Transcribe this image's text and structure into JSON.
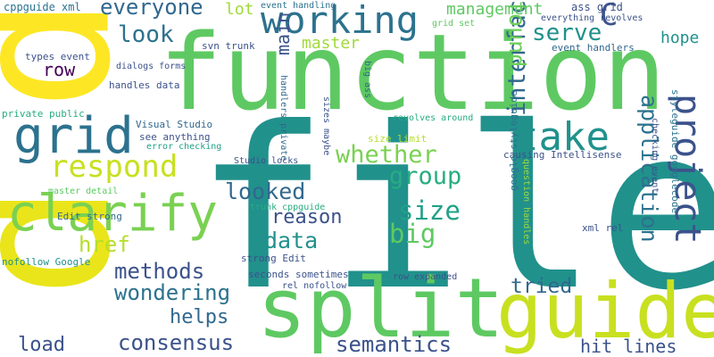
{
  "palette": {
    "dark_purple": "#440154",
    "indigo": "#3b528b",
    "blue": "#2c728e",
    "teal": "#21918c",
    "green": "#27ad81",
    "light_green": "#5ec962",
    "lime": "#9fda3a",
    "yellow": "#fde725"
  },
  "words": [
    {
      "text": "file",
      "color": "#21918c"
    },
    {
      "text": "function",
      "color": "#5ec962"
    },
    {
      "text": "split",
      "color": "#5ec962"
    },
    {
      "text": "guide",
      "color": "#c8e020"
    },
    {
      "text": "p",
      "color": "#fde725"
    },
    {
      "text": "p",
      "color": "#e9e51a"
    },
    {
      "text": "clarify",
      "color": "#7ad151"
    },
    {
      "text": "grid",
      "color": "#2c728e"
    },
    {
      "text": "working",
      "color": "#2c728e"
    },
    {
      "text": "take",
      "color": "#21918c"
    },
    {
      "text": "project",
      "color": "#3b528b"
    },
    {
      "text": "respond",
      "color": "#c8e020"
    },
    {
      "text": "whether",
      "color": "#7ad151"
    },
    {
      "text": "group",
      "color": "#27ad81"
    },
    {
      "text": "size",
      "color": "#1fa187"
    },
    {
      "text": "big",
      "color": "#5ec962"
    },
    {
      "text": "looked",
      "color": "#31688e"
    },
    {
      "text": "data",
      "color": "#21918c"
    },
    {
      "text": "reason",
      "color": "#3b528b"
    },
    {
      "text": "interface",
      "color": "#31688e"
    },
    {
      "text": "application",
      "color": "#2c728e"
    },
    {
      "text": "found",
      "color": "#6ece58"
    },
    {
      "text": "serve",
      "color": "#21918c"
    },
    {
      "text": "C",
      "color": "#3b528b"
    },
    {
      "text": "everyone",
      "color": "#31688e"
    },
    {
      "text": "look",
      "color": "#2c728e"
    },
    {
      "text": "management",
      "color": "#5ec962"
    },
    {
      "text": "methods",
      "color": "#3b528b"
    },
    {
      "text": "wondering",
      "color": "#2c728e"
    },
    {
      "text": "href",
      "color": "#b5de2b"
    },
    {
      "text": "consensus",
      "color": "#3b528b"
    },
    {
      "text": "semantics",
      "color": "#3b528b"
    },
    {
      "text": "tried",
      "color": "#31688e"
    },
    {
      "text": "helps",
      "color": "#31688e"
    },
    {
      "text": "load",
      "color": "#3b528b"
    },
    {
      "text": "hit lines",
      "color": "#3b528b"
    },
    {
      "text": "hope",
      "color": "#21918c"
    },
    {
      "text": "row",
      "color": "#440154"
    },
    {
      "text": "main",
      "color": "#3b528b"
    },
    {
      "text": "lot",
      "color": "#9fda3a"
    },
    {
      "text": "master",
      "color": "#9fda3a"
    },
    {
      "text": "cppguide xml",
      "color": "#2c728e"
    },
    {
      "text": "event handling",
      "color": "#2c728e"
    },
    {
      "text": "grid set",
      "color": "#5ec962"
    },
    {
      "text": "ass grid",
      "color": "#3b528b"
    },
    {
      "text": "everything revolves",
      "color": "#3b528b"
    },
    {
      "text": "event handlers",
      "color": "#31688e"
    },
    {
      "text": "svn trunk",
      "color": "#3b528b"
    },
    {
      "text": "types event",
      "color": "#3b528b"
    },
    {
      "text": "dialogs forms",
      "color": "#3b528b"
    },
    {
      "text": "handles data",
      "color": "#3b528b"
    },
    {
      "text": "private public",
      "color": "#27ad81"
    },
    {
      "text": "handlers private",
      "color": "#31688e"
    },
    {
      "text": "sizes maybe",
      "color": "#3b528b"
    },
    {
      "text": "big ass",
      "color": "#31688e"
    },
    {
      "text": "revolves around",
      "color": "#27ad81"
    },
    {
      "text": "Visual Studio",
      "color": "#31688e"
    },
    {
      "text": "see anything",
      "color": "#3b528b"
    },
    {
      "text": "error checking",
      "color": "#1fa187"
    },
    {
      "text": "master detail",
      "color": "#5ec962"
    },
    {
      "text": "size limit",
      "color": "#b5de2b"
    },
    {
      "text": "Studio locks",
      "color": "#3b528b"
    },
    {
      "text": "causing Intellisense",
      "color": "#3b528b"
    },
    {
      "text": "Edit strong",
      "color": "#31688e"
    },
    {
      "text": "nofollow Google",
      "color": "#21918c"
    },
    {
      "text": "trunk cppguide",
      "color": "#27ad81"
    },
    {
      "text": "strong Edit",
      "color": "#3b528b"
    },
    {
      "text": "seconds sometimes",
      "color": "#3b528b"
    },
    {
      "text": "rel nofollow",
      "color": "#3b528b"
    },
    {
      "text": "row expanded",
      "color": "#3b528b"
    },
    {
      "text": "xml rel",
      "color": "#3b528b"
    },
    {
      "text": "google styleguide",
      "color": "#2c728e"
    },
    {
      "text": "question handles",
      "color": "#9fda3a"
    },
    {
      "text": "checking event",
      "color": "#3b528b"
    },
    {
      "text": "styleguide googlecode",
      "color": "#2c728e"
    }
  ]
}
